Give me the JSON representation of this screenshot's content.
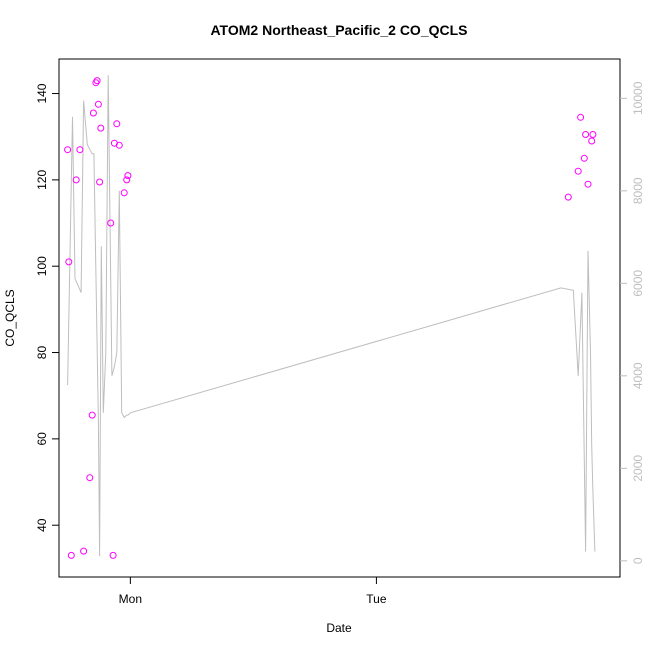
{
  "chart_data": {
    "type": "scatter",
    "title": "ATOM2 Northeast_Pacific_2 CO_QCLS",
    "xlabel": "Date",
    "ylabel": "CO_QCLS",
    "x_axis": {
      "range": [
        -0.29,
        1.99
      ],
      "ticks": [
        {
          "value": 0,
          "label": "Mon"
        },
        {
          "value": 1,
          "label": "Tue"
        }
      ]
    },
    "y_axis_left": {
      "range": [
        28,
        148
      ],
      "ticks": [
        40,
        60,
        80,
        100,
        120,
        140
      ]
    },
    "y_axis_right": {
      "range": [
        -350,
        10850
      ],
      "ticks": [
        0,
        2000,
        4000,
        6000,
        8000,
        10000
      ],
      "color": "#bebebe"
    },
    "series": [
      {
        "kind": "points",
        "axis": "left",
        "color": "#ff00ff",
        "x": [
          -0.255,
          -0.25,
          -0.24,
          -0.22,
          -0.205,
          -0.19,
          -0.165,
          -0.155,
          -0.15,
          -0.14,
          -0.135,
          -0.13,
          -0.125,
          -0.12,
          -0.08,
          -0.07,
          -0.065,
          -0.055,
          -0.045,
          -0.025,
          -0.015,
          -0.01,
          1.78,
          1.82,
          1.83,
          1.845,
          1.85,
          1.86,
          1.875,
          1.88
        ],
        "y": [
          127,
          101,
          33,
          120,
          127,
          34,
          51,
          65.5,
          135.5,
          142.5,
          143,
          137.5,
          119.5,
          132,
          110,
          33,
          128.5,
          133,
          128,
          117,
          120,
          121,
          116,
          122,
          134.5,
          125,
          130.5,
          119,
          129,
          130.5
        ]
      },
      {
        "kind": "line",
        "axis": "right",
        "color": "#bebebe",
        "x": [
          -0.255,
          -0.235,
          -0.225,
          -0.2,
          -0.19,
          -0.175,
          -0.155,
          -0.148,
          -0.13,
          -0.125,
          -0.118,
          -0.11,
          -0.1,
          -0.09,
          -0.075,
          -0.065,
          -0.055,
          -0.045,
          -0.035,
          -0.025,
          -0.015,
          -0.01,
          0,
          1.75,
          1.8,
          1.82,
          1.835,
          1.85,
          1.86,
          1.87,
          1.875,
          1.88,
          1.888
        ],
        "y": [
          3800,
          9600,
          6100,
          5800,
          9950,
          9000,
          8800,
          8800,
          3000,
          100,
          6800,
          3200,
          4500,
          10500,
          4000,
          4200,
          4500,
          8000,
          3200,
          3100,
          3150,
          3150,
          3200,
          5900,
          5850,
          4000,
          5800,
          200,
          6700,
          4500,
          2500,
          1500,
          200
        ]
      }
    ]
  }
}
